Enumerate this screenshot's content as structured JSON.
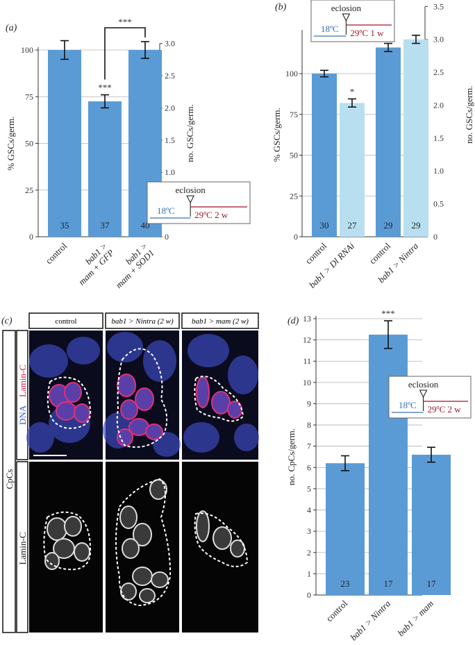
{
  "panel_labels": {
    "a": "(a)",
    "b": "(b)",
    "c": "(c)",
    "d": "(d)"
  },
  "chart_data": [
    {
      "panel": "(a)",
      "type": "bar",
      "categories": [
        "control",
        "bab1 > mam + GFP",
        "bab1 > mam + SOD1"
      ],
      "category_lines": [
        [
          "control"
        ],
        [
          "bab1 >",
          "mam + GFP"
        ],
        [
          "bab1 >",
          "mam + SOD1"
        ]
      ],
      "values": [
        100,
        72.5,
        100
      ],
      "errors": [
        5,
        3.5,
        4.5
      ],
      "n_labels": [
        "35",
        "37",
        "40"
      ],
      "bar_colors": [
        "#5b9bd5",
        "#5b9bd5",
        "#5b9bd5"
      ],
      "significance": [
        {
          "text": "***",
          "over": 1
        },
        {
          "text": "***",
          "bracket": [
            1,
            2
          ]
        }
      ],
      "ylabel": "% GSCs/germ.",
      "ylim": [
        0,
        100
      ],
      "yticks": [
        "0",
        "25",
        "50",
        "75",
        "100"
      ],
      "y2label": "no. GSCs/germ.",
      "y2lim": [
        0,
        3.0
      ],
      "y2ticks": [
        "0",
        "0.5",
        "1.0",
        "1.5",
        "2.0",
        "2.5",
        "3.0"
      ],
      "inset": {
        "title": "eclosion",
        "from": "18ºC",
        "to": "29ºC 2 w"
      }
    },
    {
      "panel": "(b)",
      "type": "bar",
      "categories": [
        "control",
        "bab1 > Dl RNAi",
        "control",
        "bab1 > Nintra"
      ],
      "category_lines": [
        [
          "control"
        ],
        [
          "bab1 > Dl RNAi"
        ],
        [
          "control"
        ],
        [
          "bab1 > Nintra"
        ]
      ],
      "values": [
        100,
        82,
        116,
        121
      ],
      "errors": [
        2,
        2.5,
        2.5,
        2.5
      ],
      "n_labels": [
        "30",
        "27",
        "29",
        "29"
      ],
      "bar_colors": [
        "#5b9bd5",
        "#b8dff0",
        "#5b9bd5",
        "#b8dff0"
      ],
      "significance": [
        {
          "text": "*",
          "over": 1
        }
      ],
      "ylabel": "% GSCs/germ.",
      "ylim": [
        0,
        125
      ],
      "yticks": [
        "0",
        "25",
        "50",
        "75",
        "100"
      ],
      "y2label": "no. GSCs/germ.",
      "y2lim": [
        0,
        3.5
      ],
      "y2ticks": [
        "0",
        "0.5",
        "1.0",
        "1.5",
        "2.0",
        "2.5",
        "3.0",
        "3.5"
      ],
      "inset": {
        "title": "eclosion",
        "from": "18ºC",
        "to": "29ºC 1 w"
      }
    },
    {
      "panel": "(d)",
      "type": "bar",
      "categories": [
        "control",
        "bab1 > Nintra",
        "bab1 > mam"
      ],
      "category_lines": [
        [
          "control"
        ],
        [
          "bab1 > Nintra"
        ],
        [
          "bab1 > mam"
        ]
      ],
      "values": [
        6.2,
        12.25,
        6.6
      ],
      "errors": [
        0.35,
        0.65,
        0.35
      ],
      "n_labels": [
        "23",
        "17",
        "17"
      ],
      "bar_colors": [
        "#5b9bd5",
        "#5b9bd5",
        "#5b9bd5"
      ],
      "significance": [
        {
          "text": "***",
          "over": 1
        }
      ],
      "ylabel": "no. CpCs/germ.",
      "ylim": [
        0,
        13
      ],
      "yticks": [
        "0",
        "1",
        "2",
        "3",
        "4",
        "5",
        "6",
        "7",
        "8",
        "9",
        "10",
        "11",
        "12",
        "13"
      ],
      "inset": {
        "title": "eclosion",
        "from": "18ºC",
        "to": "29ºC 2 w"
      }
    }
  ],
  "micrographs": {
    "column_headers": [
      "control",
      "bab1 > Nintra (2 w)",
      "bab1 > mam (2 w)"
    ],
    "outer_label": "CpCs",
    "row_labels": {
      "top_dna": "DNA",
      "top_lamin": "Lamin-C",
      "bottom": "Lamin-C"
    },
    "colors": {
      "dna": "#4a5bd8",
      "lamin": "#e0307a",
      "background": "#0b0b1e"
    }
  }
}
